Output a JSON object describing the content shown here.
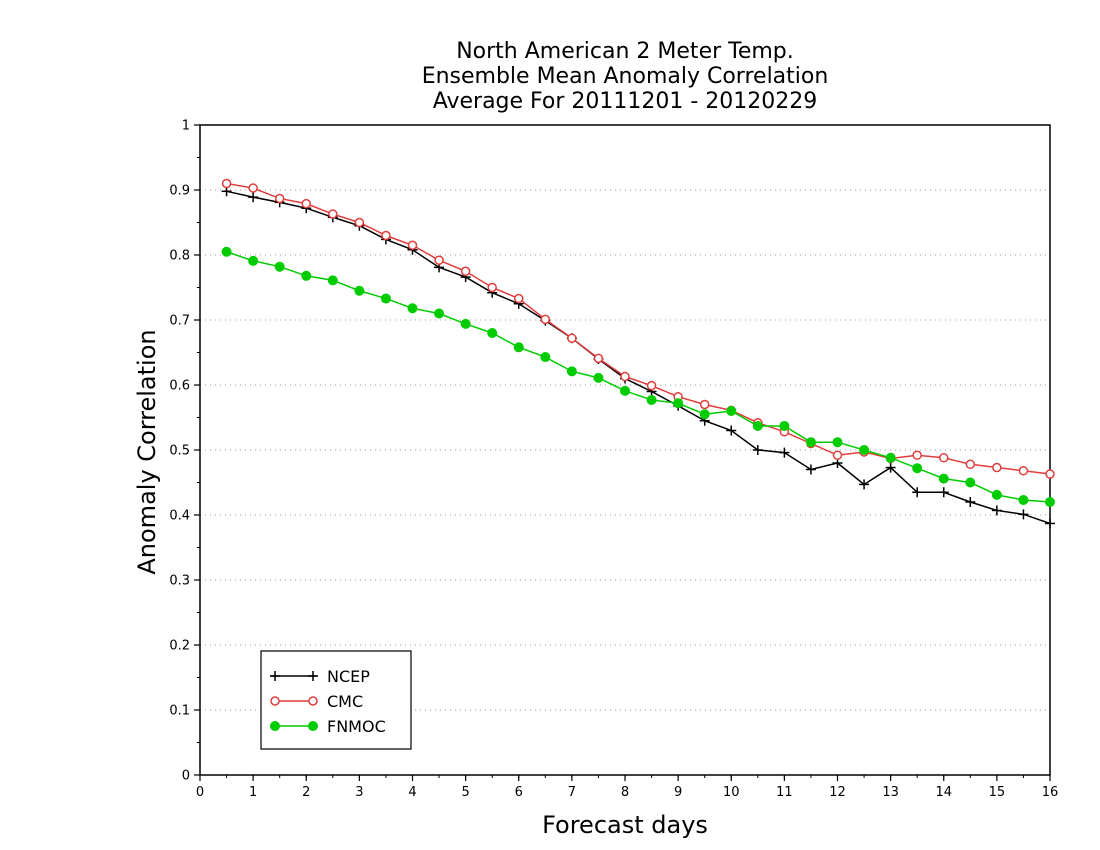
{
  "chart_data": {
    "type": "line",
    "title_lines": [
      "North American 2 Meter Temp.",
      "Ensemble Mean Anomaly Correlation",
      "Average For 20111201 - 20120229"
    ],
    "xlabel": "Forecast days",
    "ylabel": "Anomaly Correlation",
    "xlim": [
      0,
      16
    ],
    "ylim": [
      0,
      1
    ],
    "xticks": [
      0,
      1,
      2,
      3,
      4,
      5,
      6,
      7,
      8,
      9,
      10,
      11,
      12,
      13,
      14,
      15,
      16
    ],
    "xtick_labels": [
      "0",
      "1",
      "2",
      "3",
      "4",
      "5",
      "6",
      "7",
      "8",
      "9",
      "10",
      "11",
      "12",
      "13",
      "14",
      "15",
      "16"
    ],
    "yticks": [
      0,
      0.1,
      0.2,
      0.3,
      0.4,
      0.5,
      0.6,
      0.7,
      0.8,
      0.9,
      1
    ],
    "ytick_labels": [
      "0",
      "0.1",
      "0.2",
      "0.3",
      "0.4",
      "0.5",
      "0.6",
      "0.7",
      "0.8",
      "0.9",
      "1"
    ],
    "grid": "horizontal-dotted",
    "legend_position": "bottom-left",
    "x": [
      0.5,
      1,
      1.5,
      2,
      2.5,
      3,
      3.5,
      4,
      4.5,
      5,
      5.5,
      6,
      6.5,
      7,
      7.5,
      8,
      8.5,
      9,
      9.5,
      10,
      10.5,
      11,
      11.5,
      12,
      12.5,
      13,
      13.5,
      14,
      14.5,
      15,
      15.5,
      16
    ],
    "series": [
      {
        "name": "NCEP",
        "color": "#000000",
        "marker": "plus",
        "values": [
          0.898,
          0.889,
          0.881,
          0.872,
          0.858,
          0.845,
          0.824,
          0.808,
          0.781,
          0.766,
          0.742,
          0.725,
          0.699,
          0.672,
          0.64,
          0.61,
          0.59,
          0.568,
          0.545,
          0.53,
          0.5,
          0.496,
          0.47,
          0.48,
          0.447,
          0.473,
          0.435,
          0.435,
          0.42,
          0.407,
          0.401,
          0.387
        ]
      },
      {
        "name": "CMC",
        "color": "#e03c3c",
        "marker": "open-circle",
        "values": [
          0.91,
          0.903,
          0.887,
          0.879,
          0.863,
          0.85,
          0.83,
          0.815,
          0.792,
          0.775,
          0.75,
          0.733,
          0.701,
          0.672,
          0.641,
          0.613,
          0.599,
          0.582,
          0.57,
          0.561,
          0.542,
          0.528,
          0.51,
          0.492,
          0.497,
          0.487,
          0.492,
          0.488,
          0.478,
          0.473,
          0.468,
          0.463
        ]
      },
      {
        "name": "FNMOC",
        "color": "#00cc00",
        "marker": "filled-circle",
        "values": [
          0.805,
          0.791,
          0.782,
          0.768,
          0.761,
          0.745,
          0.733,
          0.718,
          0.71,
          0.694,
          0.68,
          0.658,
          0.643,
          0.621,
          0.611,
          0.591,
          0.577,
          0.572,
          0.555,
          0.56,
          0.537,
          0.537,
          0.512,
          0.512,
          0.5,
          0.488,
          0.472,
          0.456,
          0.45,
          0.431,
          0.423,
          0.42
        ]
      }
    ]
  }
}
